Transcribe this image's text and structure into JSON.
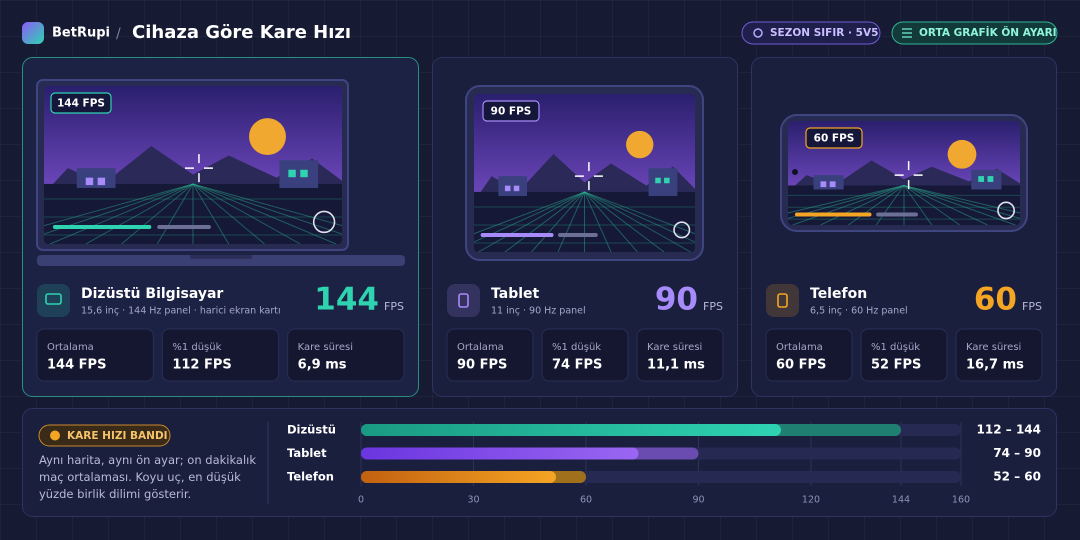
{
  "header": {
    "brand": "BetRupi",
    "separator": "/",
    "title": "Cihaza Göre Kare Hızı",
    "badges": [
      "SEZON SIFIR · 5V5",
      "ORTA GRAFİK ÖN AYARI"
    ]
  },
  "devices": [
    {
      "name": "Dizüstü Bilgisayar",
      "spec": "15,6 inç · 144 Hz panel · harici ekran kartı",
      "fps": 144,
      "unit": "FPS",
      "badge": "144 FPS",
      "color": "#2fd3b0",
      "stats": [
        {
          "label": "Ortalama",
          "value": "144 FPS"
        },
        {
          "label": "%1 düşük",
          "value": "112 FPS"
        },
        {
          "label": "Kare süresi",
          "value": "6,9 ms"
        }
      ]
    },
    {
      "name": "Tablet",
      "spec": "11 inç · 90 Hz panel",
      "fps": 90,
      "unit": "FPS",
      "badge": "90 FPS",
      "color": "#a78bfa",
      "stats": [
        {
          "label": "Ortalama",
          "value": "90 FPS"
        },
        {
          "label": "%1 düşük",
          "value": "74 FPS"
        },
        {
          "label": "Kare süresi",
          "value": "11,1 ms"
        }
      ]
    },
    {
      "name": "Telefon",
      "spec": "6,5 inç · 60 Hz panel",
      "fps": 60,
      "unit": "FPS",
      "badge": "60 FPS",
      "color": "#f5a524",
      "stats": [
        {
          "label": "Ortalama",
          "value": "60 FPS"
        },
        {
          "label": "%1 düşük",
          "value": "52 FPS"
        },
        {
          "label": "Kare süresi",
          "value": "16,7 ms"
        }
      ]
    }
  ],
  "band": {
    "badge": "KARE HIZI BANDI",
    "description": "Aynı harita, aynı ön ayar; on dakikalık maç ortalaması. Koyu uç, en düşük yüzde birlik dilimi gösterir.",
    "rows": [
      {
        "label": "Dizüstü",
        "low": 112,
        "high": 144,
        "range_label": "112 – 144",
        "color": "#2ed3b3"
      },
      {
        "label": "Tablet",
        "low": 74,
        "high": 90,
        "range_label": "74 – 90",
        "color": "#9a66f2"
      },
      {
        "label": "Telefon",
        "low": 52,
        "high": 60,
        "range_label": "52 – 60",
        "color": "#f5a524"
      }
    ],
    "xlim": [
      0,
      160
    ],
    "xticks": [
      0,
      30,
      60,
      90,
      120,
      144,
      160
    ]
  }
}
